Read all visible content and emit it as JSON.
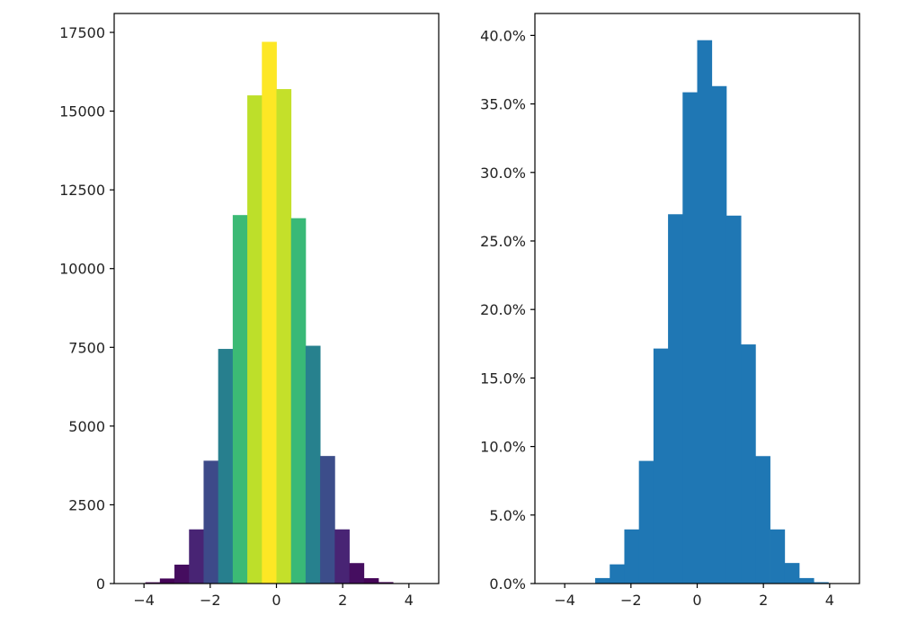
{
  "chart_data": [
    {
      "type": "bar",
      "title": "",
      "xlabel": "",
      "ylabel": "",
      "bin_edges": [
        -4.4,
        -3.96,
        -3.52,
        -3.08,
        -2.64,
        -2.2,
        -1.76,
        -1.32,
        -0.88,
        -0.44,
        0.0,
        0.44,
        0.88,
        1.32,
        1.76,
        2.2,
        2.64,
        3.08,
        3.52,
        3.96,
        4.4
      ],
      "values": [
        5,
        40,
        160,
        600,
        1720,
        3900,
        7450,
        11700,
        15500,
        17200,
        15700,
        11600,
        7550,
        4050,
        1720,
        650,
        170,
        45,
        8,
        2
      ],
      "colormap": "viridis",
      "xlim": [
        -4.9,
        4.9
      ],
      "ylim": [
        0,
        18100
      ],
      "xticks": [
        -4,
        -2,
        0,
        2,
        4
      ],
      "xtick_labels": [
        "−4",
        "−2",
        "0",
        "2",
        "4"
      ],
      "yticks": [
        0,
        2500,
        5000,
        7500,
        10000,
        12500,
        15000,
        17500
      ],
      "ytick_labels": [
        "0",
        "2500",
        "5000",
        "7500",
        "10000",
        "12500",
        "15000",
        "17500"
      ],
      "color_by": "height"
    },
    {
      "type": "bar",
      "title": "",
      "xlabel": "",
      "ylabel": "",
      "bin_edges": [
        -4.4,
        -3.96,
        -3.52,
        -3.08,
        -2.64,
        -2.2,
        -1.76,
        -1.32,
        -0.88,
        -0.44,
        0.0,
        0.44,
        0.88,
        1.32,
        1.76,
        2.2,
        2.64,
        3.08,
        3.52,
        3.96,
        4.4
      ],
      "values": [
        0.0001,
        0.0004,
        0.016,
        0.4,
        1.4,
        3.95,
        8.95,
        17.15,
        26.95,
        35.85,
        39.65,
        36.3,
        26.85,
        17.45,
        9.3,
        3.95,
        1.5,
        0.4,
        0.1,
        0.02
      ],
      "value_unit": "percent",
      "color": "#1f77b4",
      "xlim": [
        -4.9,
        4.9
      ],
      "ylim": [
        0,
        41.6
      ],
      "xticks": [
        -4,
        -2,
        0,
        2,
        4
      ],
      "xtick_labels": [
        "−4",
        "−2",
        "0",
        "2",
        "4"
      ],
      "yticks": [
        0,
        5,
        10,
        15,
        20,
        25,
        30,
        35,
        40
      ],
      "ytick_labels": [
        "0.0%",
        "5.0%",
        "10.0%",
        "15.0%",
        "20.0%",
        "25.0%",
        "30.0%",
        "35.0%",
        "40.0%"
      ]
    }
  ]
}
